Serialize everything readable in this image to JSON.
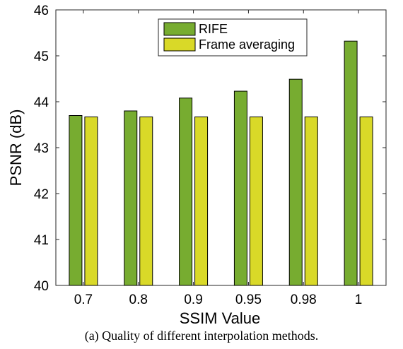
{
  "chart_data": {
    "type": "bar",
    "categories": [
      "0.7",
      "0.8",
      "0.9",
      "0.95",
      "0.98",
      "1"
    ],
    "series": [
      {
        "name": "RIFE",
        "values": [
          43.7,
          43.8,
          44.08,
          44.23,
          44.49,
          45.32
        ],
        "color": "#77ac30"
      },
      {
        "name": "Frame averaging",
        "values": [
          43.67,
          43.67,
          43.67,
          43.67,
          43.67,
          43.67
        ],
        "color": "#d9d928"
      }
    ],
    "xlabel": "SSIM Value",
    "ylabel": "PSNR (dB)",
    "ylim": [
      40,
      46
    ],
    "yticks": [
      "40",
      "41",
      "42",
      "43",
      "44",
      "45",
      "46"
    ],
    "grid": false,
    "legend_position": "top-center"
  },
  "caption": "(a) Quality of different interpolation methods."
}
